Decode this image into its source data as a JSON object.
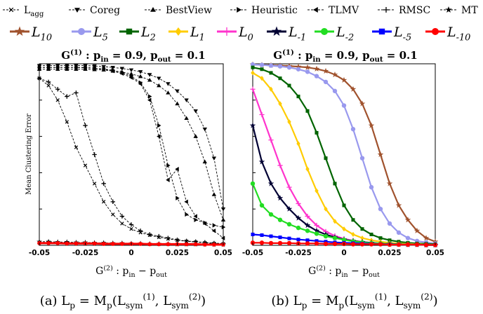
{
  "legend_row1": [
    {
      "label": "L_agg",
      "marker": "x"
    },
    {
      "label": "Coreg",
      "marker": "tri-down"
    },
    {
      "label": "BestView",
      "marker": "tri-up"
    },
    {
      "label": "Heuristic",
      "marker": "tri-right"
    },
    {
      "label": "TLMV",
      "marker": "tri-left"
    },
    {
      "label": "RMSC",
      "marker": "plus"
    },
    {
      "label": "MT",
      "marker": "star"
    }
  ],
  "legend_row2": [
    {
      "label": "L_10",
      "color": "#a0522d",
      "marker": "star"
    },
    {
      "label": "L_5",
      "color": "#9999ee",
      "marker": "circle"
    },
    {
      "label": "L_2",
      "color": "#006400",
      "marker": "square"
    },
    {
      "label": "L_1",
      "color": "#ffcc00",
      "marker": "diamond"
    },
    {
      "label": "L_0",
      "color": "#ff33cc",
      "marker": "plus"
    },
    {
      "label": "L_-1",
      "color": "#000033",
      "marker": "star"
    },
    {
      "label": "L_-2",
      "color": "#22dd22",
      "marker": "circle"
    },
    {
      "label": "L_-5",
      "color": "#0000ff",
      "marker": "square"
    },
    {
      "label": "L_-10",
      "color": "#ff0000",
      "marker": "circle"
    }
  ],
  "panel_title": "G^(1) : p_in = 0.9, p_out = 0.1",
  "xlabel": "G^(2) : p_in − p_out",
  "ylabel": "Mean Clustering Error",
  "captions": [
    "(a) L_p = M_p(L_sym^(1), L_sym^(2))",
    "(b) L_p = M_p(L_sym^(1), L_sym^(2))"
  ],
  "chart_data": [
    {
      "type": "line",
      "title": "G^(1) : p_in = 0.9, p_out = 0.1",
      "xlabel": "G^(2) : p_in − p_out",
      "ylabel": "Mean Clustering Error",
      "xlim": [
        -0.05,
        0.05
      ],
      "ylim": [
        0,
        0.5
      ],
      "xticks": [
        "-0.05",
        "-0.025",
        "0",
        "0.025",
        "0.05"
      ],
      "x": [
        -0.05,
        -0.045,
        -0.04,
        -0.035,
        -0.03,
        -0.025,
        -0.02,
        -0.015,
        -0.01,
        -0.005,
        0,
        0.005,
        0.01,
        0.015,
        0.02,
        0.025,
        0.03,
        0.035,
        0.04,
        0.045,
        0.05
      ],
      "series": [
        {
          "name": "L_agg",
          "marker": "x",
          "values": [
            0.46,
            0.44,
            0.4,
            0.34,
            0.27,
            0.22,
            0.17,
            0.12,
            0.085,
            0.06,
            0.045,
            0.035,
            0.028,
            0.022,
            0.018,
            0.014,
            0.011,
            0.009,
            0.007,
            0.005,
            0.004
          ]
        },
        {
          "name": "Coreg",
          "marker": "tri-down",
          "values": [
            0.495,
            0.495,
            0.495,
            0.495,
            0.495,
            0.495,
            0.494,
            0.492,
            0.49,
            0.487,
            0.483,
            0.478,
            0.47,
            0.46,
            0.445,
            0.425,
            0.4,
            0.37,
            0.32,
            0.24,
            0.1
          ]
        },
        {
          "name": "BestView",
          "marker": "tri-up",
          "values": [
            0.485,
            0.485,
            0.485,
            0.485,
            0.485,
            0.485,
            0.484,
            0.483,
            0.48,
            0.477,
            0.472,
            0.465,
            0.455,
            0.44,
            0.42,
            0.39,
            0.35,
            0.3,
            0.23,
            0.14,
            0.07
          ]
        },
        {
          "name": "Heuristic",
          "marker": "tri-right",
          "values": [
            0.49,
            0.49,
            0.49,
            0.49,
            0.49,
            0.489,
            0.488,
            0.486,
            0.482,
            0.476,
            0.466,
            0.448,
            0.41,
            0.33,
            0.22,
            0.13,
            0.085,
            0.07,
            0.062,
            0.055,
            0.05
          ]
        },
        {
          "name": "TLMV",
          "marker": "tri-left",
          "values": [
            0.49,
            0.49,
            0.49,
            0.49,
            0.49,
            0.49,
            0.488,
            0.485,
            0.48,
            0.473,
            0.462,
            0.445,
            0.4,
            0.3,
            0.18,
            0.21,
            0.12,
            0.08,
            0.06,
            0.04,
            0.02
          ]
        },
        {
          "name": "RMSC",
          "marker": "plus",
          "values": [
            0.46,
            0.45,
            0.43,
            0.41,
            0.42,
            0.33,
            0.25,
            0.17,
            0.12,
            0.08,
            0.057,
            0.04,
            0.03,
            0.025,
            0.02,
            0.015,
            0.012,
            0.01,
            0.008,
            0.006,
            0.005
          ]
        },
        {
          "name": "MT",
          "marker": "star",
          "values": [
            0.01,
            0.01,
            0.009,
            0.009,
            0.008,
            0.008,
            0.007,
            0.007,
            0.006,
            0.006,
            0.005,
            0.005,
            0.004,
            0.004,
            0.004,
            0.003,
            0.003,
            0.003,
            0.003,
            0.002,
            0.002
          ]
        },
        {
          "name": "L_-10",
          "marker": "circle",
          "values": [
            0.006,
            0.006,
            0.006,
            0.005,
            0.005,
            0.005,
            0.005,
            0.004,
            0.004,
            0.004,
            0.004,
            0.004,
            0.003,
            0.003,
            0.003,
            0.003,
            0.003,
            0.003,
            0.002,
            0.002,
            0.002
          ]
        }
      ]
    },
    {
      "type": "line",
      "title": "G^(1) : p_in = 0.9, p_out = 0.1",
      "xlabel": "G^(2) : p_in − p_out",
      "xlim": [
        -0.05,
        0.05
      ],
      "ylim": [
        0,
        0.5
      ],
      "xticks": [
        "-0.05",
        "-0.025",
        "0",
        "0.025",
        "0.05"
      ],
      "x": [
        -0.05,
        -0.045,
        -0.04,
        -0.035,
        -0.03,
        -0.025,
        -0.02,
        -0.015,
        -0.01,
        -0.005,
        0,
        0.005,
        0.01,
        0.015,
        0.02,
        0.025,
        0.03,
        0.035,
        0.04,
        0.045,
        0.05
      ],
      "series": [
        {
          "name": "L_10",
          "values": [
            0.498,
            0.497,
            0.496,
            0.495,
            0.494,
            0.492,
            0.49,
            0.486,
            0.48,
            0.47,
            0.455,
            0.43,
            0.39,
            0.33,
            0.25,
            0.17,
            0.11,
            0.07,
            0.04,
            0.02,
            0.01
          ]
        },
        {
          "name": "L_5",
          "values": [
            0.498,
            0.497,
            0.495,
            0.493,
            0.49,
            0.485,
            0.478,
            0.466,
            0.45,
            0.425,
            0.385,
            0.32,
            0.24,
            0.16,
            0.1,
            0.06,
            0.035,
            0.02,
            0.012,
            0.008,
            0.005
          ]
        },
        {
          "name": "L_2",
          "values": [
            0.49,
            0.485,
            0.475,
            0.46,
            0.44,
            0.41,
            0.37,
            0.31,
            0.24,
            0.17,
            0.11,
            0.07,
            0.045,
            0.03,
            0.02,
            0.014,
            0.01,
            0.007,
            0.005,
            0.004,
            0.003
          ]
        },
        {
          "name": "L_1",
          "values": [
            0.475,
            0.46,
            0.43,
            0.39,
            0.34,
            0.28,
            0.21,
            0.15,
            0.1,
            0.066,
            0.045,
            0.03,
            0.02,
            0.014,
            0.01,
            0.007,
            0.005,
            0.004,
            0.003,
            0.002,
            0.002
          ]
        },
        {
          "name": "L_0",
          "values": [
            0.43,
            0.36,
            0.29,
            0.22,
            0.16,
            0.115,
            0.08,
            0.055,
            0.038,
            0.026,
            0.018,
            0.013,
            0.009,
            0.007,
            0.005,
            0.004,
            0.003,
            0.002,
            0.002,
            0.001,
            0.001
          ]
        },
        {
          "name": "L_-1",
          "values": [
            0.33,
            0.23,
            0.17,
            0.13,
            0.1,
            0.075,
            0.055,
            0.04,
            0.03,
            0.022,
            0.016,
            0.012,
            0.009,
            0.007,
            0.005,
            0.004,
            0.003,
            0.002,
            0.002,
            0.001,
            0.001
          ]
        },
        {
          "name": "L_-2",
          "values": [
            0.17,
            0.11,
            0.085,
            0.07,
            0.058,
            0.048,
            0.04,
            0.032,
            0.025,
            0.02,
            0.015,
            0.011,
            0.008,
            0.006,
            0.005,
            0.004,
            0.003,
            0.002,
            0.002,
            0.001,
            0.001
          ]
        },
        {
          "name": "L_-5",
          "values": [
            0.03,
            0.028,
            0.025,
            0.022,
            0.019,
            0.016,
            0.014,
            0.012,
            0.01,
            0.008,
            0.007,
            0.006,
            0.005,
            0.004,
            0.003,
            0.003,
            0.002,
            0.002,
            0.002,
            0.001,
            0.001
          ]
        },
        {
          "name": "L_-10",
          "values": [
            0.007,
            0.007,
            0.006,
            0.006,
            0.006,
            0.005,
            0.005,
            0.005,
            0.004,
            0.004,
            0.004,
            0.003,
            0.003,
            0.003,
            0.003,
            0.002,
            0.002,
            0.002,
            0.002,
            0.001,
            0.001
          ]
        }
      ]
    }
  ]
}
